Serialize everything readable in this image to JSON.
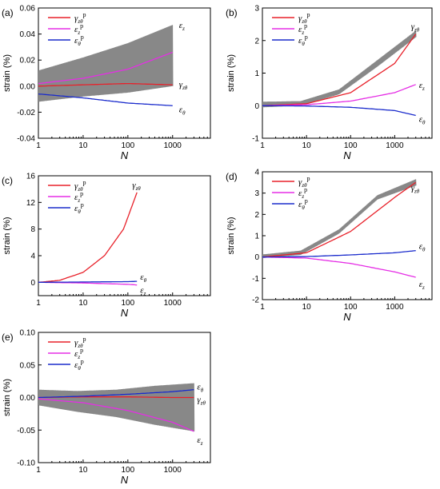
{
  "figure": {
    "x_axis_label": "N",
    "y_axis_label": "strain (%)"
  },
  "chart_data": [
    {
      "panel": "(a)",
      "type": "line",
      "xscale": "log",
      "xlim": [
        1,
        7000
      ],
      "xticks": [
        "1",
        "10",
        "100",
        "1000"
      ],
      "ylim": [
        -0.04,
        0.06
      ],
      "yticks": [
        "-0.04",
        "-0.02",
        "0.00",
        "0.02",
        "0.04",
        "0.06"
      ],
      "xlabel": "N",
      "ylabel": "strain (%)",
      "legend": [
        "γzθp",
        "εzp",
        "εθp"
      ],
      "legend_position": "top-left",
      "series": [
        {
          "color": "#e8212a",
          "x": [
            1,
            10,
            100,
            1000
          ],
          "y": [
            0.0,
            0.001,
            0.002,
            0.001
          ]
        },
        {
          "color": "#e52ee5",
          "x": [
            1,
            10,
            100,
            1000
          ],
          "y": [
            0.002,
            0.006,
            0.013,
            0.026
          ]
        },
        {
          "color": "#1a2bcc",
          "x": [
            1,
            10,
            100,
            1000
          ],
          "y": [
            -0.006,
            -0.009,
            -0.013,
            -0.015
          ]
        }
      ],
      "cyclic_band": {
        "color": "#888888",
        "x_end": 1000,
        "upper": [
          0.012,
          0.022,
          0.033,
          0.047
        ],
        "lower": [
          -0.012,
          -0.008,
          -0.005,
          0.0
        ]
      },
      "annotations": [
        "εz",
        "γzθ",
        "εθ"
      ]
    },
    {
      "panel": "(b)",
      "type": "line",
      "xscale": "log",
      "xlim": [
        1,
        7000
      ],
      "xticks": [
        "1",
        "10",
        "100",
        "1000"
      ],
      "ylim": [
        -1,
        3
      ],
      "yticks": [
        "-1",
        "0",
        "1",
        "2",
        "3"
      ],
      "xlabel": "N",
      "ylabel": "strain (%)",
      "legend": [
        "γzθp",
        "εzp",
        "εθp"
      ],
      "legend_position": "top-left",
      "series": [
        {
          "color": "#e8212a",
          "x": [
            1,
            10,
            100,
            1000,
            3000
          ],
          "y": [
            0.0,
            0.06,
            0.4,
            1.3,
            2.2
          ]
        },
        {
          "color": "#e52ee5",
          "x": [
            1,
            10,
            100,
            1000,
            3000
          ],
          "y": [
            0.0,
            0.03,
            0.14,
            0.4,
            0.65
          ]
        },
        {
          "color": "#1a2bcc",
          "x": [
            1,
            10,
            100,
            1000,
            3000
          ],
          "y": [
            0.0,
            -0.01,
            -0.05,
            -0.15,
            -0.3
          ]
        }
      ],
      "cyclic_band": {
        "color": "#888888",
        "x_end": 3000,
        "upper": [
          0.12,
          0.14,
          0.5,
          1.4,
          2.3
        ],
        "lower": [
          -0.05,
          0.0,
          0.35,
          1.2,
          2.1
        ]
      },
      "annotations": [
        "γzθ",
        "εz",
        "εθ"
      ]
    },
    {
      "panel": "(c)",
      "type": "line",
      "xscale": "log",
      "xlim": [
        1,
        7000
      ],
      "xticks": [
        "1",
        "10",
        "100",
        "1000"
      ],
      "ylim": [
        -2,
        16
      ],
      "yticks": [
        "0",
        "4",
        "8",
        "12",
        "16"
      ],
      "xlabel": "N",
      "ylabel": "strain (%)",
      "legend": [
        "γzθp",
        "εzp",
        "εθp"
      ],
      "legend_position": "top-left",
      "series": [
        {
          "color": "#e8212a",
          "x": [
            1,
            3,
            10,
            30,
            80,
            160
          ],
          "y": [
            0.0,
            0.3,
            1.5,
            4.0,
            8.0,
            13.5
          ]
        },
        {
          "color": "#e52ee5",
          "x": [
            1,
            10,
            100,
            160
          ],
          "y": [
            0.0,
            -0.1,
            -0.3,
            -0.4
          ]
        },
        {
          "color": "#1a2bcc",
          "x": [
            1,
            10,
            100,
            160
          ],
          "y": [
            0.0,
            0.05,
            0.1,
            0.15
          ]
        }
      ],
      "annotations": [
        "γzθ",
        "εθ",
        "εz"
      ]
    },
    {
      "panel": "(d)",
      "type": "line",
      "xscale": "log",
      "xlim": [
        1,
        7000
      ],
      "xticks": [
        "1",
        "10",
        "100",
        "1000"
      ],
      "ylim": [
        -2,
        4
      ],
      "yticks": [
        "-2",
        "-1",
        "0",
        "1",
        "2",
        "3",
        "4"
      ],
      "xlabel": "N",
      "ylabel": "strain (%)",
      "legend": [
        "γzθp",
        "εzp",
        "εθp"
      ],
      "legend_position": "top-left",
      "series": [
        {
          "color": "#e8212a",
          "x": [
            1,
            10,
            100,
            1000,
            3000
          ],
          "y": [
            0.0,
            0.2,
            1.2,
            2.8,
            3.5
          ]
        },
        {
          "color": "#e52ee5",
          "x": [
            1,
            10,
            100,
            1000,
            3000
          ],
          "y": [
            0.0,
            -0.05,
            -0.3,
            -0.7,
            -0.95
          ]
        },
        {
          "color": "#1a2bcc",
          "x": [
            1,
            10,
            100,
            1000,
            3000
          ],
          "y": [
            0.0,
            0.02,
            0.1,
            0.2,
            0.3
          ]
        }
      ],
      "cyclic_band": {
        "color": "#888888",
        "x_end": 3000,
        "upper": [
          0.12,
          0.3,
          1.3,
          2.9,
          3.65
        ],
        "lower": [
          -0.05,
          0.1,
          1.1,
          2.7,
          3.35
        ]
      },
      "annotations": [
        "γzθ",
        "εθ",
        "εz"
      ]
    },
    {
      "panel": "(e)",
      "type": "line",
      "xscale": "log",
      "xlim": [
        1,
        7000
      ],
      "xticks": [
        "1",
        "10",
        "100",
        "1000"
      ],
      "ylim": [
        -0.1,
        0.1
      ],
      "yticks": [
        "-0.10",
        "-0.05",
        "0.00",
        "0.05",
        "0.10"
      ],
      "xlabel": "N",
      "ylabel": "strain (%)",
      "legend": [
        "γzθp",
        "εzp",
        "εθp"
      ],
      "legend_position": "top-left",
      "series": [
        {
          "color": "#e8212a",
          "x": [
            1,
            10,
            100,
            1000,
            3000
          ],
          "y": [
            0.0,
            0.001,
            0.001,
            0.0,
            0.0
          ]
        },
        {
          "color": "#e52ee5",
          "x": [
            1,
            10,
            100,
            1000,
            3000
          ],
          "y": [
            -0.002,
            -0.008,
            -0.02,
            -0.038,
            -0.052
          ]
        },
        {
          "color": "#1a2bcc",
          "x": [
            1,
            10,
            100,
            1000,
            3000
          ],
          "y": [
            0.0,
            0.002,
            0.005,
            0.009,
            0.012
          ]
        }
      ],
      "cyclic_band": {
        "color": "#888888",
        "x_end": 3000,
        "upper": [
          0.012,
          0.01,
          0.012,
          0.018,
          0.022
        ],
        "lower": [
          -0.012,
          -0.022,
          -0.03,
          -0.042,
          -0.052
        ]
      },
      "annotations": [
        "εθ",
        "γzθ",
        "εz"
      ]
    }
  ]
}
